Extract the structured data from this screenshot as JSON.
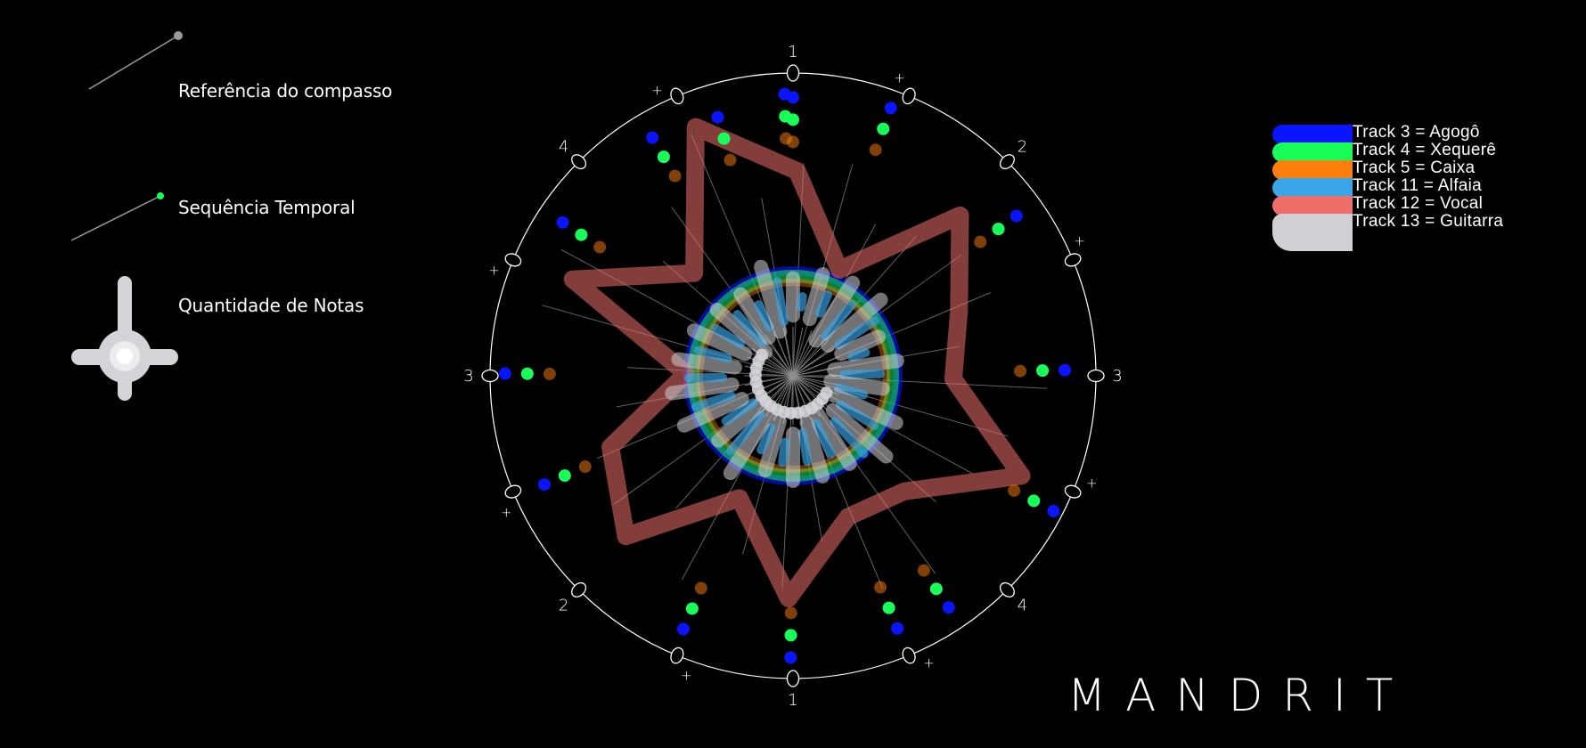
{
  "legend": {
    "ref_label": "Referência do compasso",
    "seq_label": "Sequência Temporal",
    "notes_label": "Quantidade de Notas"
  },
  "dial": {
    "beat_labels": [
      "1",
      "+",
      "2",
      "+",
      "3",
      "+",
      "4",
      "+",
      "1",
      "+",
      "2",
      "+",
      "3",
      "+",
      "4",
      "+"
    ]
  },
  "tracks": [
    {
      "label": "Track 3 = Agogô",
      "color": "#0a14ff"
    },
    {
      "label": "Track 4 = Xequerê",
      "color": "#19ff5a"
    },
    {
      "label": "Track 5 = Caixa",
      "color": "#ff7f0e"
    },
    {
      "label": "Track 11 = Alfaia",
      "color": "#3aa6e8"
    },
    {
      "label": "Track 12 = Vocal",
      "color": "#ee6f6a"
    },
    {
      "label": "Track 13 = Guitarra",
      "color": "#cfcfd4"
    }
  ],
  "brand": "MANDRIT"
}
